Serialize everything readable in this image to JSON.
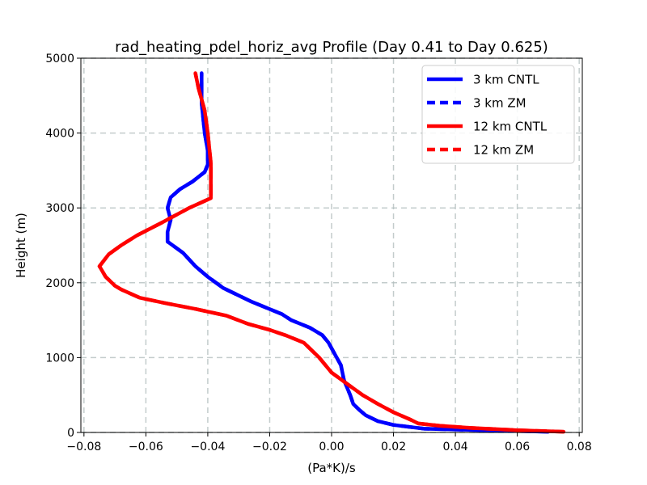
{
  "chart_data": {
    "type": "line",
    "title": "rad_heating_pdel_horiz_avg Profile (Day 0.41 to Day 0.625)",
    "xlabel": "(Pa*K)/s",
    "ylabel": "Height (m)",
    "xlim": [
      -0.081,
      0.081
    ],
    "ylim": [
      0,
      5000
    ],
    "xticks": [
      -0.08,
      -0.06,
      -0.04,
      -0.02,
      0.0,
      0.02,
      0.04,
      0.06,
      0.08
    ],
    "xtick_labels": [
      "−0.08",
      "−0.06",
      "−0.04",
      "−0.02",
      "0.00",
      "0.02",
      "0.04",
      "0.06",
      "0.08"
    ],
    "yticks": [
      0,
      1000,
      2000,
      3000,
      4000,
      5000
    ],
    "ytick_labels": [
      "0",
      "1000",
      "2000",
      "3000",
      "4000",
      "5000"
    ],
    "grid": true,
    "legend_position": "top-right",
    "series": [
      {
        "name": "3 km CNTL",
        "color": "#0000ff",
        "style": "solid",
        "x": [
          0.07,
          0.03,
          0.02,
          0.015,
          0.011,
          0.009,
          0.007,
          0.006,
          0.004,
          0.003,
          0.001,
          -0.001,
          -0.003,
          -0.007,
          -0.013,
          -0.016,
          -0.026,
          -0.035,
          -0.04,
          -0.044,
          -0.048,
          -0.053,
          -0.053,
          -0.052,
          -0.053,
          -0.052,
          -0.049,
          -0.045,
          -0.041,
          -0.04,
          -0.04,
          -0.041,
          -0.042,
          -0.042
        ],
        "y": [
          10,
          50,
          100,
          150,
          230,
          300,
          380,
          500,
          700,
          900,
          1050,
          1200,
          1300,
          1400,
          1500,
          1580,
          1750,
          1930,
          2080,
          2220,
          2400,
          2550,
          2680,
          2840,
          3000,
          3140,
          3250,
          3350,
          3480,
          3580,
          3760,
          4000,
          4400,
          4800
        ]
      },
      {
        "name": "3 km ZM",
        "color": "#0000ff",
        "style": "dashed",
        "x": [
          0.07,
          0.03,
          0.02,
          0.015,
          0.011,
          0.009,
          0.007,
          0.006,
          0.004,
          0.003,
          0.001,
          -0.001,
          -0.003,
          -0.007,
          -0.013,
          -0.016,
          -0.026,
          -0.035,
          -0.04,
          -0.044,
          -0.048,
          -0.053,
          -0.053,
          -0.052,
          -0.053,
          -0.052,
          -0.049,
          -0.045,
          -0.041,
          -0.04,
          -0.04,
          -0.041,
          -0.042,
          -0.042
        ],
        "y": [
          10,
          50,
          100,
          150,
          230,
          300,
          380,
          500,
          700,
          900,
          1050,
          1200,
          1300,
          1400,
          1500,
          1580,
          1750,
          1930,
          2080,
          2220,
          2400,
          2550,
          2680,
          2840,
          3000,
          3140,
          3250,
          3350,
          3480,
          3580,
          3760,
          4000,
          4400,
          4800
        ]
      },
      {
        "name": "12 km CNTL",
        "color": "#ff0000",
        "style": "solid",
        "x": [
          0.075,
          0.06,
          0.045,
          0.035,
          0.028,
          0.025,
          0.02,
          0.015,
          0.01,
          0.005,
          0.0,
          -0.004,
          -0.009,
          -0.015,
          -0.02,
          -0.027,
          -0.034,
          -0.044,
          -0.054,
          -0.062,
          -0.068,
          -0.07,
          -0.073,
          -0.075,
          -0.072,
          -0.068,
          -0.063,
          -0.055,
          -0.046,
          -0.039,
          -0.039,
          -0.04,
          -0.041,
          -0.043,
          -0.044
        ],
        "y": [
          10,
          30,
          60,
          90,
          120,
          180,
          270,
          380,
          500,
          650,
          800,
          1000,
          1200,
          1300,
          1370,
          1450,
          1560,
          1650,
          1730,
          1800,
          1910,
          1960,
          2080,
          2220,
          2380,
          2500,
          2630,
          2800,
          3000,
          3130,
          3600,
          4000,
          4300,
          4600,
          4800
        ]
      },
      {
        "name": "12 km ZM",
        "color": "#ff0000",
        "style": "dashed",
        "x": [
          0.075,
          0.06,
          0.045,
          0.035,
          0.028,
          0.025,
          0.02,
          0.015,
          0.01,
          0.005,
          0.0,
          -0.004,
          -0.009,
          -0.015,
          -0.02,
          -0.027,
          -0.034,
          -0.044,
          -0.054,
          -0.062,
          -0.068,
          -0.07,
          -0.073,
          -0.075,
          -0.072,
          -0.068,
          -0.063,
          -0.055,
          -0.046,
          -0.039,
          -0.039,
          -0.04,
          -0.041,
          -0.043,
          -0.044
        ],
        "y": [
          10,
          30,
          60,
          90,
          120,
          180,
          270,
          380,
          500,
          650,
          800,
          1000,
          1200,
          1300,
          1370,
          1450,
          1560,
          1650,
          1730,
          1800,
          1910,
          1960,
          2080,
          2220,
          2380,
          2500,
          2630,
          2800,
          3000,
          3130,
          3600,
          4000,
          4300,
          4600,
          4800
        ]
      }
    ]
  }
}
